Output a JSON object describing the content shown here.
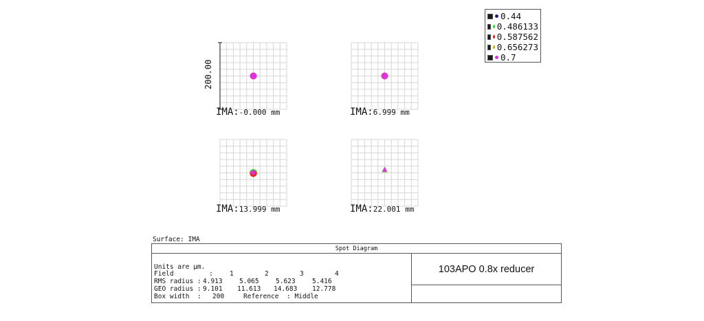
{
  "legend": [
    {
      "label": "0.44",
      "color": "#1a237e"
    },
    {
      "label": "0.486133",
      "color": "#33dd33"
    },
    {
      "label": "0.587562",
      "color": "#ee2222"
    },
    {
      "label": "0.656273",
      "color": "#c8b400"
    },
    {
      "label": "0.7",
      "color": "#dd33dd"
    }
  ],
  "scale_label": "200.00",
  "fields": [
    {
      "prefix": "IMA:",
      "value": "-0.000 mm",
      "spot": "circle"
    },
    {
      "prefix": "IMA:",
      "value": "6.999 mm",
      "spot": "circle"
    },
    {
      "prefix": "IMA:",
      "value": "13.999 mm",
      "spot": "circle"
    },
    {
      "prefix": "IMA:",
      "value": "22.001 mm",
      "spot": "triangle"
    }
  ],
  "surface": "Surface: IMA",
  "title": "Spot Diagram",
  "lens_name": "103APO 0.8x reducer",
  "info": {
    "units": "Units are µm.",
    "field_label": "Field",
    "field_colon": ":",
    "field_values": [
      "1",
      "2",
      "3",
      "4"
    ],
    "rms_label": "RMS radius :",
    "rms_values": [
      "4.913",
      "5.065",
      "5.623",
      "5.416"
    ],
    "geo_label": "GEO radius :",
    "geo_values": [
      "9.101",
      "11.613",
      "14.683",
      "12.778"
    ],
    "box_label": "Box width  :",
    "box_value": "200",
    "reference_label": "Reference",
    "reference_value": ": Middle"
  }
}
